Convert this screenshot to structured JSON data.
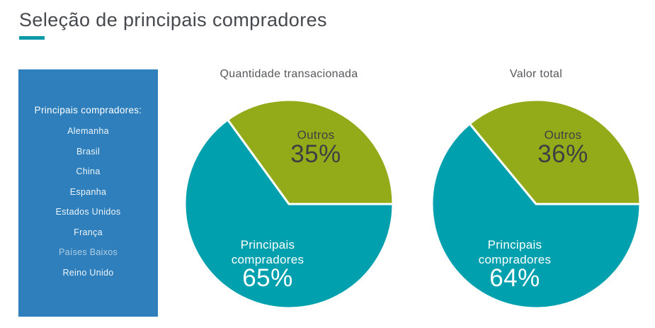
{
  "page": {
    "title": "Seleção de principais compradores",
    "accent_color": "#0d9aa8"
  },
  "sidebar": {
    "bg_color": "#2e7fbb",
    "heading": "Principais compradores:",
    "items": [
      {
        "label": "Alemanha"
      },
      {
        "label": "Brasil"
      },
      {
        "label": "China"
      },
      {
        "label": "Espanha"
      },
      {
        "label": "Estados Unidos"
      },
      {
        "label": "França"
      },
      {
        "label": "Países Baixos",
        "muted": true
      },
      {
        "label": "Reino Unido"
      }
    ]
  },
  "chart_data": [
    {
      "type": "pie",
      "title": "Quantidade transacionada",
      "start_angle_deg": 0,
      "direction": "counterclockwise",
      "slices": [
        {
          "label": "Outros",
          "value": 35,
          "display": "35%",
          "color": "#93ab19",
          "label_color": "#3d4043"
        },
        {
          "label": "Principais compradores",
          "value": 65,
          "display": "65%",
          "color": "#00a0ae",
          "label_color": "#ffffff"
        }
      ]
    },
    {
      "type": "pie",
      "title": "Valor total",
      "start_angle_deg": 0,
      "direction": "counterclockwise",
      "slices": [
        {
          "label": "Outros",
          "value": 36,
          "display": "36%",
          "color": "#93ab19",
          "label_color": "#3d4043"
        },
        {
          "label": "Principais compradores",
          "value": 64,
          "display": "64%",
          "color": "#00a0ae",
          "label_color": "#ffffff"
        }
      ]
    }
  ]
}
